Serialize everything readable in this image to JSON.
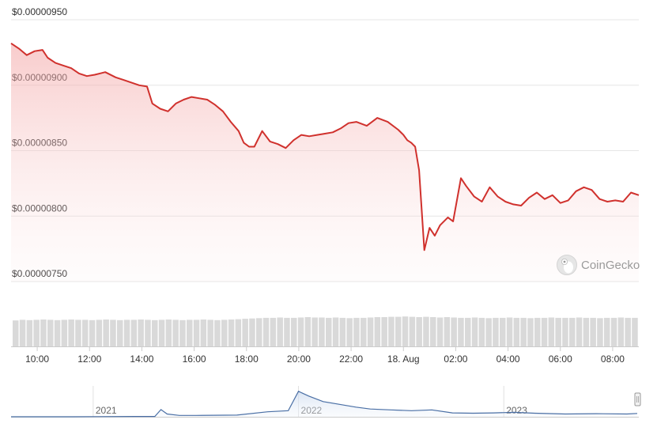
{
  "chart_data": {
    "type": "line",
    "grid": true,
    "y_axis": {
      "ticks": [
        9.5e-06,
        9e-06,
        8.5e-06,
        8e-06,
        7.5e-06
      ],
      "tick_labels": [
        "$0.00000950",
        "$0.00000900",
        "$0.00000850",
        "$0.00000800",
        "$0.00000750"
      ],
      "ylim": [
        7.5e-06,
        9.5e-06
      ]
    },
    "x_axis": {
      "tick_labels": [
        "10:00",
        "12:00",
        "14:00",
        "16:00",
        "18:00",
        "20:00",
        "22:00",
        "18. Aug",
        "02:00",
        "04:00",
        "06:00",
        "08:00"
      ],
      "tick_hours": [
        10,
        12,
        14,
        16,
        18,
        20,
        22,
        24,
        26,
        28,
        30,
        32
      ],
      "range_hours": [
        9.0,
        33.0
      ]
    },
    "series": [
      {
        "color": "#d0312d",
        "x_hours": [
          9.0,
          9.3,
          9.6,
          9.9,
          10.2,
          10.4,
          10.7,
          11.0,
          11.3,
          11.6,
          11.9,
          12.2,
          12.6,
          13.0,
          13.3,
          13.6,
          13.9,
          14.2,
          14.4,
          14.7,
          15.0,
          15.3,
          15.6,
          15.9,
          16.2,
          16.5,
          16.8,
          17.1,
          17.4,
          17.7,
          17.9,
          18.1,
          18.3,
          18.6,
          18.9,
          19.2,
          19.5,
          19.8,
          20.1,
          20.4,
          20.7,
          21.0,
          21.3,
          21.6,
          21.9,
          22.2,
          22.6,
          23.0,
          23.4,
          23.8,
          24.0,
          24.15,
          24.3,
          24.45,
          24.6,
          24.8,
          25.0,
          25.2,
          25.4,
          25.7,
          25.9,
          26.2,
          26.4,
          26.7,
          27.0,
          27.3,
          27.6,
          27.9,
          28.2,
          28.5,
          28.8,
          29.1,
          29.4,
          29.7,
          30.0,
          30.3,
          30.6,
          30.9,
          31.2,
          31.5,
          31.8,
          32.1,
          32.4,
          32.7,
          33.0
        ],
        "y": [
          9.32e-06,
          9.28e-06,
          9.23e-06,
          9.26e-06,
          9.27e-06,
          9.21e-06,
          9.17e-06,
          9.15e-06,
          9.13e-06,
          9.09e-06,
          9.07e-06,
          9.08e-06,
          9.1e-06,
          9.06e-06,
          9.04e-06,
          9.02e-06,
          9e-06,
          8.99e-06,
          8.86e-06,
          8.82e-06,
          8.8e-06,
          8.86e-06,
          8.89e-06,
          8.91e-06,
          8.9e-06,
          8.89e-06,
          8.85e-06,
          8.8e-06,
          8.72e-06,
          8.65e-06,
          8.56e-06,
          8.53e-06,
          8.53e-06,
          8.65e-06,
          8.57e-06,
          8.55e-06,
          8.52e-06,
          8.58e-06,
          8.62e-06,
          8.61e-06,
          8.62e-06,
          8.63e-06,
          8.64e-06,
          8.67e-06,
          8.71e-06,
          8.72e-06,
          8.69e-06,
          8.75e-06,
          8.72e-06,
          8.66e-06,
          8.62e-06,
          8.58e-06,
          8.56e-06,
          8.53e-06,
          8.35e-06,
          7.74e-06,
          7.91e-06,
          7.85e-06,
          7.93e-06,
          7.99e-06,
          7.96e-06,
          8.29e-06,
          8.23e-06,
          8.15e-06,
          8.11e-06,
          8.22e-06,
          8.15e-06,
          8.11e-06,
          8.09e-06,
          8.08e-06,
          8.14e-06,
          8.18e-06,
          8.13e-06,
          8.16e-06,
          8.1e-06,
          8.12e-06,
          8.19e-06,
          8.22e-06,
          8.2e-06,
          8.13e-06,
          8.11e-06,
          8.12e-06,
          8.11e-06,
          8.18e-06,
          8.16e-06
        ]
      }
    ],
    "volume": {
      "color": "#d9d9d9",
      "relative_values": [
        0.78,
        0.8,
        0.79,
        0.8,
        0.81,
        0.8,
        0.79,
        0.8,
        0.81,
        0.8,
        0.8,
        0.79,
        0.8,
        0.81,
        0.8,
        0.79,
        0.8,
        0.8,
        0.81,
        0.8,
        0.79,
        0.8,
        0.81,
        0.8,
        0.79,
        0.8,
        0.8,
        0.81,
        0.8,
        0.79,
        0.8,
        0.81,
        0.82,
        0.83,
        0.84,
        0.85,
        0.86,
        0.86,
        0.87,
        0.86,
        0.86,
        0.87,
        0.88,
        0.87,
        0.87,
        0.86,
        0.87,
        0.86,
        0.85,
        0.86,
        0.86,
        0.87,
        0.88,
        0.88,
        0.89,
        0.89,
        0.9,
        0.89,
        0.88,
        0.89,
        0.88,
        0.87,
        0.88,
        0.87,
        0.86,
        0.86,
        0.87,
        0.86,
        0.85,
        0.86,
        0.86,
        0.87,
        0.86,
        0.86,
        0.85,
        0.86,
        0.86,
        0.87,
        0.86,
        0.86,
        0.86,
        0.87,
        0.86,
        0.86,
        0.85,
        0.86,
        0.86,
        0.87,
        0.86,
        0.86
      ]
    },
    "navigator": {
      "tick_labels": [
        "2021",
        "2022",
        "2023"
      ],
      "tick_years": [
        2021.0,
        2022.0,
        2023.0
      ],
      "range_years": [
        2020.6,
        2023.65
      ],
      "x_years": [
        2020.6,
        2020.9,
        2021.2,
        2021.3,
        2021.33,
        2021.36,
        2021.42,
        2021.5,
        2021.7,
        2021.85,
        2021.95,
        2022.0,
        2022.05,
        2022.12,
        2022.2,
        2022.28,
        2022.35,
        2022.45,
        2022.55,
        2022.65,
        2022.75,
        2022.85,
        2022.95,
        2023.05,
        2023.15,
        2023.3,
        2023.45,
        2023.6,
        2023.65
      ],
      "relative_values": [
        0.0,
        0.0,
        0.01,
        0.01,
        0.26,
        0.1,
        0.05,
        0.05,
        0.06,
        0.18,
        0.22,
        0.92,
        0.75,
        0.55,
        0.45,
        0.35,
        0.28,
        0.25,
        0.22,
        0.25,
        0.14,
        0.13,
        0.14,
        0.16,
        0.13,
        0.1,
        0.11,
        0.1,
        0.12
      ]
    },
    "watermark": "CoinGecko"
  }
}
